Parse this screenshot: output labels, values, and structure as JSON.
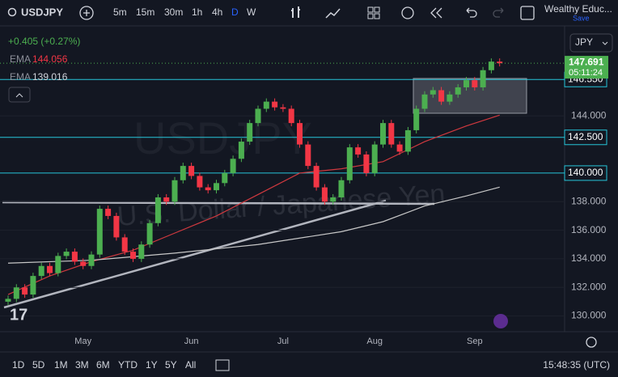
{
  "toolbar": {
    "symbol": "USDJPY",
    "intervals": [
      "5m",
      "15m",
      "30m",
      "1h",
      "4h",
      "D",
      "W"
    ],
    "account": "Wealthy Educ...",
    "save": "Save"
  },
  "legend": {
    "change": "+0.405 (+0.27%)",
    "ema1_name": "EMA",
    "ema1_value": "144.056",
    "ema2_name": "EMA",
    "ema2_value": "139.016"
  },
  "currency": "JPY",
  "watermark": {
    "symbol": "USDJPY",
    "description": "U.S. Dollar / Japanese Yen"
  },
  "bottom_bar": {
    "ranges": [
      "1D",
      "5D",
      "1M",
      "3M",
      "6M",
      "YTD",
      "1Y",
      "5Y",
      "All"
    ],
    "clock": "15:48:35 (UTC)"
  },
  "chart_data": {
    "type": "candlestick",
    "categories": [
      null,
      null,
      null,
      null,
      null,
      null,
      null,
      null,
      null,
      "May",
      null,
      null,
      null,
      null,
      null,
      null,
      null,
      null,
      null,
      null,
      null,
      null,
      "Jun",
      null,
      null,
      null,
      null,
      null,
      null,
      null,
      null,
      null,
      null,
      "Jul",
      null,
      null,
      null,
      null,
      null,
      null,
      null,
      null,
      null,
      null,
      "Aug",
      null,
      null,
      null,
      null,
      null,
      null,
      null,
      null,
      null,
      null,
      null,
      "Sep",
      null,
      null,
      null
    ],
    "open": [
      131.0,
      131.2,
      132.0,
      131.5,
      132.8,
      133.5,
      133.0,
      134.2,
      134.5,
      133.8,
      133.5,
      134.3,
      137.5,
      137.0,
      135.5,
      134.5,
      134.0,
      135.0,
      136.5,
      138.3,
      138.0,
      139.5,
      140.5,
      139.8,
      139.0,
      138.8,
      139.3,
      140.0,
      141.0,
      142.2,
      143.5,
      144.5,
      145.0,
      144.6,
      144.5,
      143.5,
      142.0,
      140.5,
      139.0,
      138.0,
      138.3,
      139.5,
      141.8,
      141.3,
      140.0,
      142.0,
      143.5,
      142.0,
      141.5,
      143.0,
      144.5,
      145.5,
      145.8,
      145.0,
      145.5,
      146.0,
      146.5,
      146.0,
      147.2,
      147.8
    ],
    "close": [
      131.2,
      132.0,
      131.5,
      132.8,
      133.5,
      133.0,
      134.2,
      134.5,
      133.8,
      133.5,
      134.3,
      137.5,
      137.0,
      135.5,
      134.5,
      134.0,
      135.0,
      136.5,
      138.3,
      138.0,
      139.5,
      140.5,
      139.8,
      139.0,
      138.8,
      139.3,
      140.0,
      141.0,
      142.2,
      143.5,
      144.5,
      145.0,
      144.6,
      144.5,
      143.5,
      142.0,
      140.5,
      139.0,
      138.0,
      138.3,
      139.5,
      141.8,
      141.3,
      140.0,
      142.0,
      143.5,
      142.0,
      141.5,
      143.0,
      144.5,
      145.5,
      145.8,
      145.0,
      145.5,
      146.0,
      146.5,
      146.0,
      147.2,
      147.8,
      147.691
    ],
    "up_color": "#4caf50",
    "down_color": "#f23645",
    "ema_series": [
      {
        "name": "EMA",
        "color": "#d0393f",
        "x": [
          0,
          5,
          10,
          15,
          20,
          25,
          30,
          35,
          40,
          45,
          50,
          55,
          59
        ],
        "values": [
          131.5,
          132.8,
          133.8,
          134.6,
          135.8,
          137.0,
          138.5,
          140.0,
          140.3,
          140.8,
          142.2,
          143.3,
          144.056
        ]
      },
      {
        "name": "EMA",
        "color": "#c8c8c8",
        "x": [
          0,
          10,
          20,
          30,
          40,
          45,
          50,
          55,
          59
        ],
        "values": [
          133.7,
          133.9,
          134.4,
          135.0,
          135.9,
          136.6,
          137.7,
          138.4,
          139.016
        ]
      }
    ],
    "hlines": {
      "values": [
        146.55,
        142.5,
        140.0
      ],
      "value_labels": [
        "146.550",
        "142.500",
        "140.000"
      ],
      "color": "#26c6da"
    },
    "last": {
      "value": 147.691,
      "value_label": "147.691",
      "countdown": "05:11:24"
    },
    "ylim": [
      128.9,
      150.3
    ],
    "yticks": [
      {
        "value": 130,
        "label": "130.000"
      },
      {
        "value": 132,
        "label": "132.000"
      },
      {
        "value": 134,
        "label": "134.000"
      },
      {
        "value": 136,
        "label": "136.000"
      },
      {
        "value": 138,
        "label": "138.000"
      },
      {
        "value": 144,
        "label": "144.000"
      }
    ],
    "grid": true
  }
}
